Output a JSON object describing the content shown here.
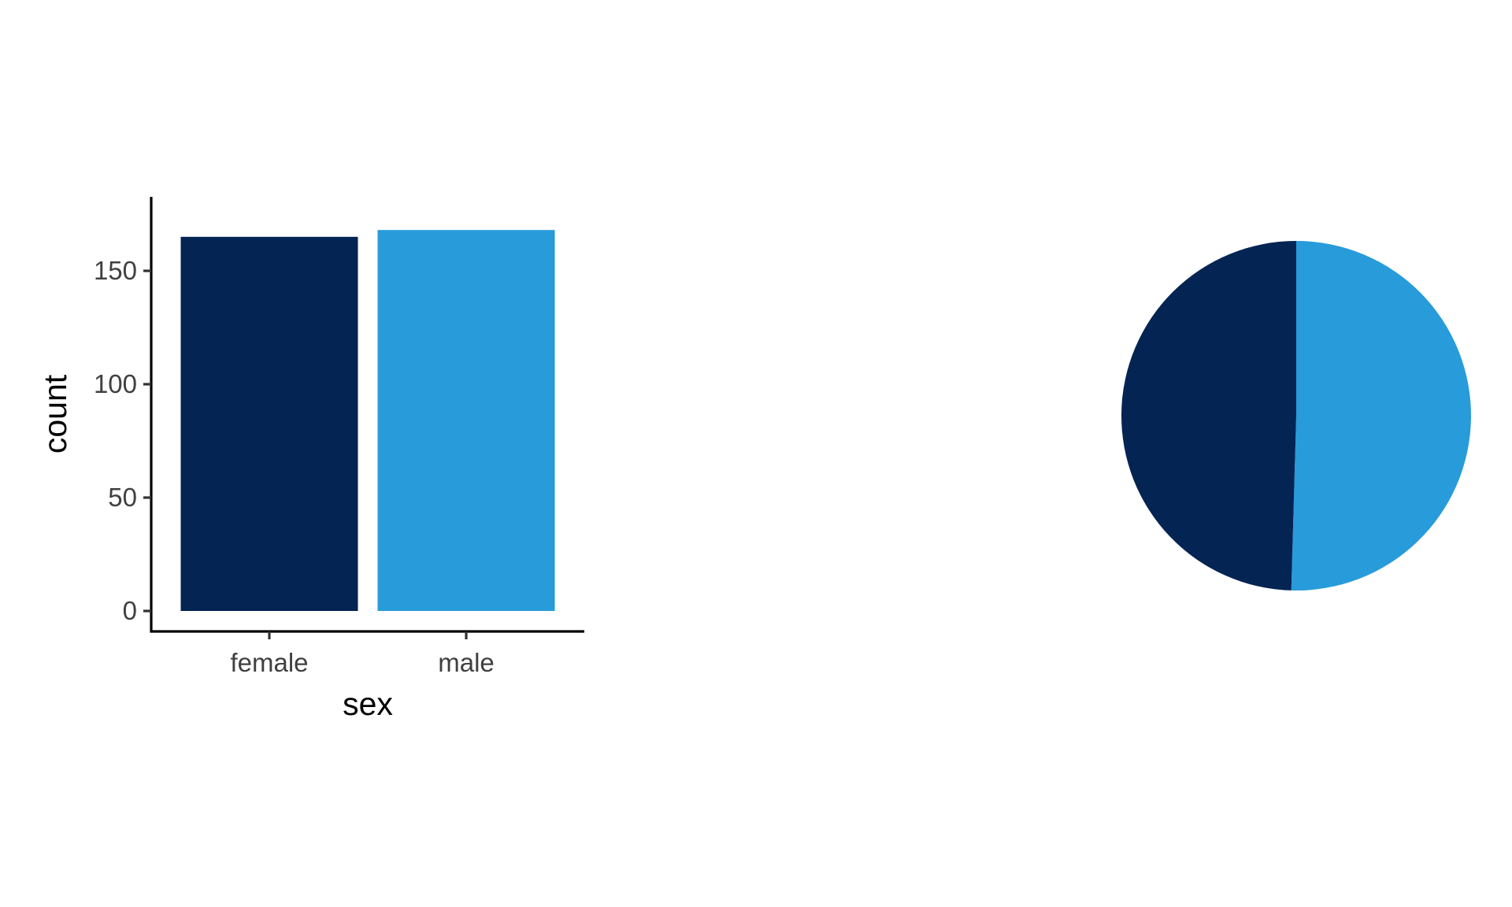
{
  "chart_data": [
    {
      "type": "bar",
      "categories": [
        "female",
        "male"
      ],
      "values": [
        165,
        168
      ],
      "colors": [
        "#042453",
        "#289bdb"
      ],
      "xlabel": "sex",
      "ylabel": "count",
      "ylim": [
        0,
        175
      ],
      "yticks": [
        0,
        50,
        100,
        150
      ],
      "grid": false,
      "legend": "none"
    },
    {
      "type": "pie",
      "categories": [
        "female",
        "male"
      ],
      "values": [
        165,
        168
      ],
      "colors": [
        "#042453",
        "#289bdb"
      ],
      "legend": "none"
    }
  ]
}
